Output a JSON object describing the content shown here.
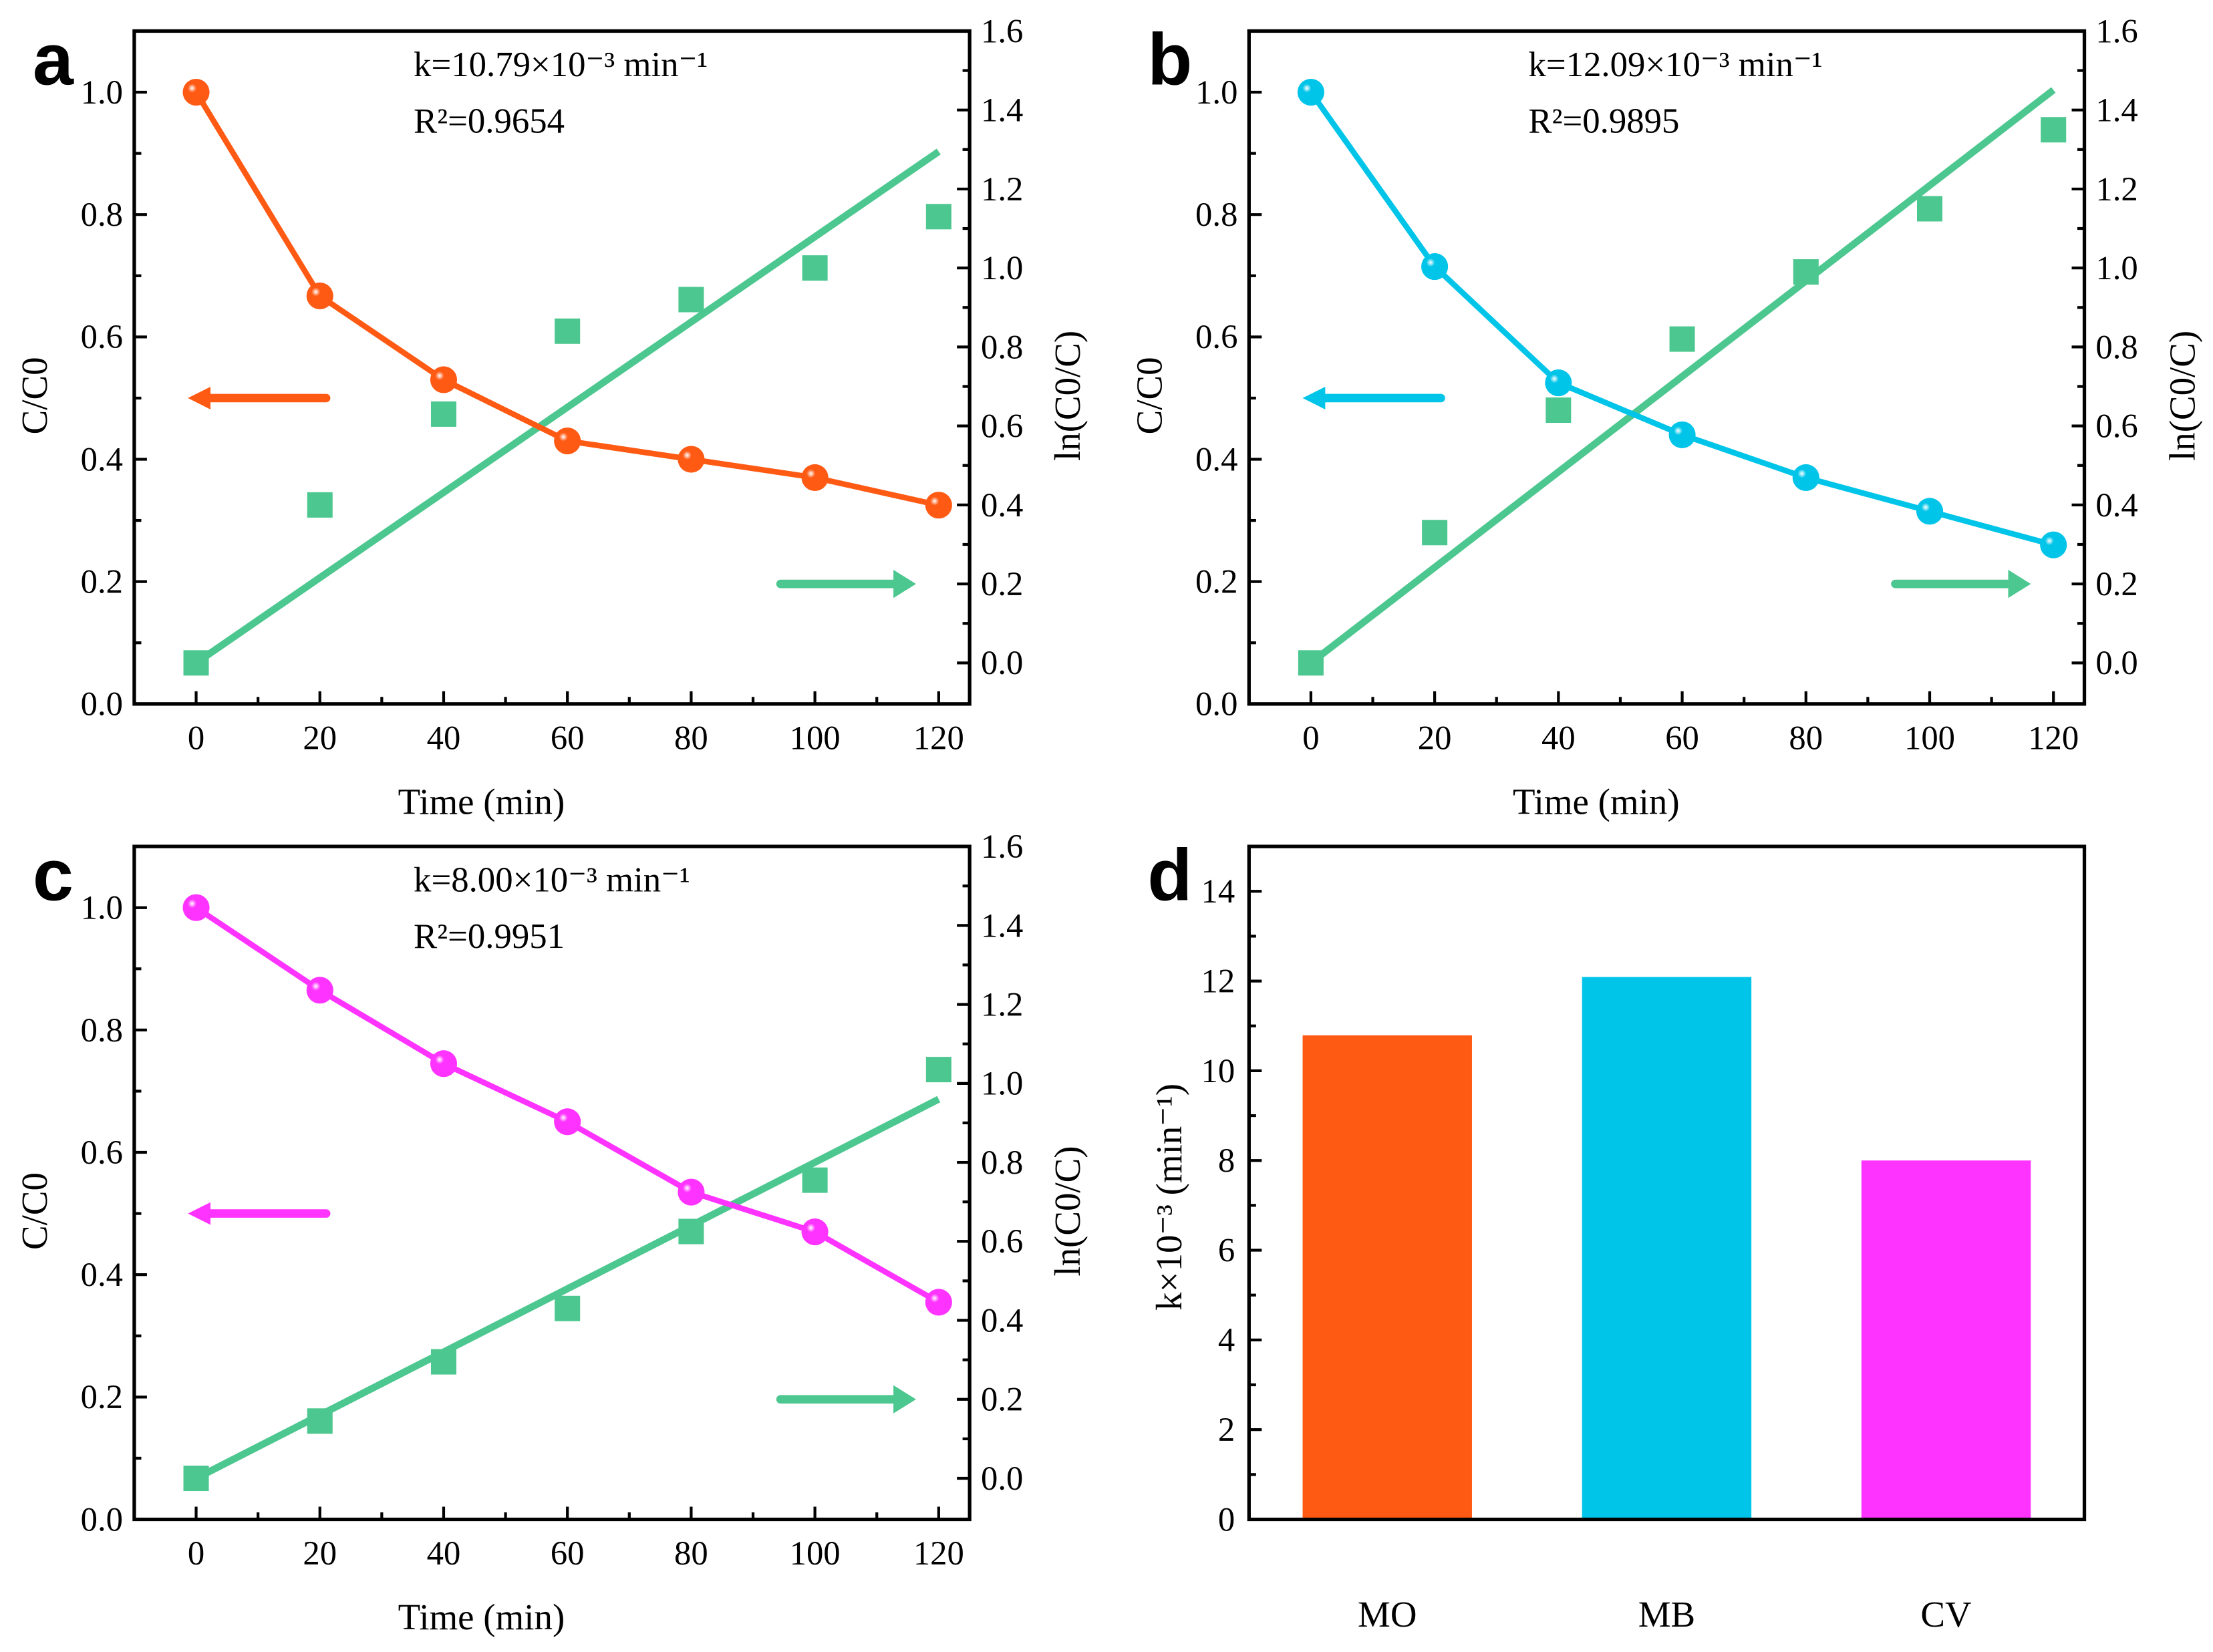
{
  "colors": {
    "MO": "#ff5a14",
    "MB": "#00c4e8",
    "CV": "#ff33ff",
    "fit": "#4cc78f",
    "axis": "#000000"
  },
  "chart_data": [
    {
      "type": "line",
      "panel_label": "a",
      "xlabel": "Time (min)",
      "ylabel_left": "C/C0",
      "ylabel_right": "ln(C0/C)",
      "xlim": [
        -10,
        125
      ],
      "ylim_left": [
        0,
        1.1
      ],
      "ylim_right": [
        -0.104,
        1.6
      ],
      "xticks": [
        0,
        20,
        40,
        60,
        80,
        100,
        120
      ],
      "yticks_left": [
        0.0,
        0.2,
        0.4,
        0.6,
        0.8,
        1.0
      ],
      "yticks_right": [
        0.0,
        0.2,
        0.4,
        0.6,
        0.8,
        1.0,
        1.2,
        1.4,
        1.6
      ],
      "annotation_k": "k=10.79×10⁻³ min⁻¹",
      "annotation_r2": "R²=0.9654",
      "x": [
        0,
        20,
        40,
        60,
        80,
        100,
        120
      ],
      "series": [
        {
          "name": "C/C0",
          "axis": "left",
          "color_key": "MO",
          "values": [
            1.0,
            0.667,
            0.53,
            0.43,
            0.4,
            0.37,
            0.325
          ]
        },
        {
          "name": "ln(C0/C)",
          "axis": "right",
          "values": [
            0.0,
            0.4,
            0.63,
            0.84,
            0.92,
            1.0,
            1.13
          ]
        }
      ],
      "fit_line": {
        "slope": 0.01079,
        "intercept": 0.0
      }
    },
    {
      "type": "line",
      "panel_label": "b",
      "xlabel": "Time (min)",
      "ylabel_left": "C/C0",
      "ylabel_right": "ln(C0/C)",
      "xlim": [
        -10,
        125
      ],
      "ylim_left": [
        0,
        1.1
      ],
      "ylim_right": [
        -0.104,
        1.6
      ],
      "xticks": [
        0,
        20,
        40,
        60,
        80,
        100,
        120
      ],
      "yticks_left": [
        0.0,
        0.2,
        0.4,
        0.6,
        0.8,
        1.0
      ],
      "yticks_right": [
        0.0,
        0.2,
        0.4,
        0.6,
        0.8,
        1.0,
        1.2,
        1.4,
        1.6
      ],
      "annotation_k": "k=12.09×10⁻³ min⁻¹",
      "annotation_r2": "R²=0.9895",
      "x": [
        0,
        20,
        40,
        60,
        80,
        100,
        120
      ],
      "series": [
        {
          "name": "C/C0",
          "axis": "left",
          "color_key": "MB",
          "values": [
            1.0,
            0.715,
            0.525,
            0.44,
            0.37,
            0.315,
            0.26
          ]
        },
        {
          "name": "ln(C0/C)",
          "axis": "right",
          "values": [
            0.0,
            0.33,
            0.64,
            0.82,
            0.99,
            1.15,
            1.35
          ]
        }
      ],
      "fit_line": {
        "slope": 0.01209,
        "intercept": 0.0
      }
    },
    {
      "type": "line",
      "panel_label": "c",
      "xlabel": "Time (min)",
      "ylabel_left": "C/C0",
      "ylabel_right": "ln(C0/C)",
      "xlim": [
        -10,
        125
      ],
      "ylim_left": [
        0,
        1.1
      ],
      "ylim_right": [
        -0.104,
        1.6
      ],
      "xticks": [
        0,
        20,
        40,
        60,
        80,
        100,
        120
      ],
      "yticks_left": [
        0.0,
        0.2,
        0.4,
        0.6,
        0.8,
        1.0
      ],
      "yticks_right": [
        0.0,
        0.2,
        0.4,
        0.6,
        0.8,
        1.0,
        1.2,
        1.4,
        1.6
      ],
      "annotation_k": "k=8.00×10⁻³ min⁻¹",
      "annotation_r2": "R²=0.9951",
      "x": [
        0,
        20,
        40,
        60,
        80,
        100,
        120
      ],
      "series": [
        {
          "name": "C/C0",
          "axis": "left",
          "color_key": "CV",
          "values": [
            1.0,
            0.865,
            0.745,
            0.65,
            0.535,
            0.47,
            0.355
          ]
        },
        {
          "name": "ln(C0/C)",
          "axis": "right",
          "values": [
            0.0,
            0.145,
            0.295,
            0.43,
            0.625,
            0.755,
            1.035
          ]
        }
      ],
      "fit_line": {
        "slope": 0.008,
        "intercept": 0.0
      }
    },
    {
      "type": "bar",
      "panel_label": "d",
      "categories": [
        "MO",
        "MB",
        "CV"
      ],
      "values": [
        10.79,
        12.09,
        8.0
      ],
      "ylabel": "k×10⁻³ (min⁻¹)",
      "xlabel": "",
      "ylim": [
        0,
        15
      ],
      "yticks": [
        0,
        2,
        4,
        6,
        8,
        10,
        12,
        14
      ]
    }
  ]
}
